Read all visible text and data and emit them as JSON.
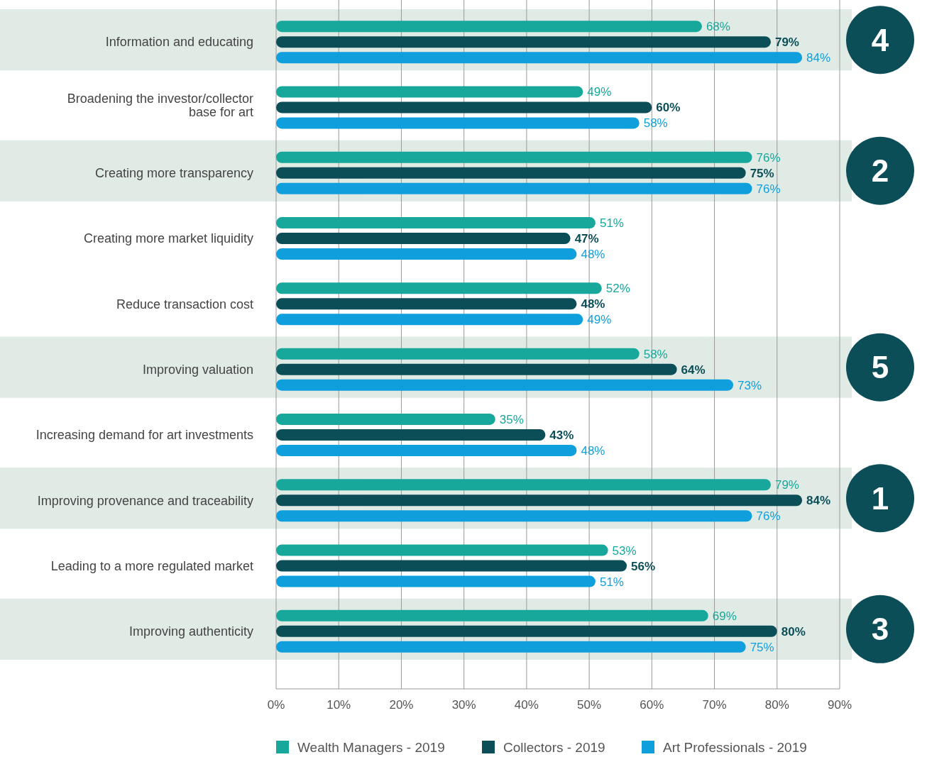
{
  "chart_data": {
    "type": "bar",
    "orientation": "horizontal",
    "categories": [
      "Information and educating",
      "Broadening the investor/collector base for art",
      "Creating more transparency",
      "Creating more market liquidity",
      "Reduce transaction cost",
      "Improving valuation",
      "Increasing demand for art investments",
      "Improving provenance and traceability",
      "Leading to a more regulated market",
      "Improving authenticity"
    ],
    "series": [
      {
        "name": "Wealth Managers - 2019",
        "color": "#17a79b",
        "values": [
          68,
          49,
          76,
          51,
          52,
          58,
          35,
          79,
          53,
          69
        ],
        "value_labels": [
          "68%",
          "49%",
          "76%",
          "51%",
          "52%",
          "58%",
          "35%",
          "79%",
          "53%",
          "69%"
        ]
      },
      {
        "name": "Collectors - 2019",
        "color": "#0b4e58",
        "values": [
          79,
          60,
          75,
          47,
          48,
          64,
          43,
          84,
          56,
          80
        ],
        "value_labels": [
          "79%",
          "60%",
          "75%",
          "47%",
          "48%",
          "64%",
          "43%",
          "84%",
          "56%",
          "80%"
        ]
      },
      {
        "name": "Art Professionals - 2019",
        "color": "#109fdd",
        "values": [
          84,
          58,
          76,
          48,
          49,
          73,
          48,
          76,
          51,
          75
        ],
        "value_labels": [
          "84%",
          "58%",
          "76%",
          "48%",
          "49%",
          "73%",
          "48%",
          "76%",
          "51%",
          "75%"
        ]
      }
    ],
    "xlim": [
      0,
      90
    ],
    "xticks": [
      {
        "value": 0,
        "label": "0%"
      },
      {
        "value": 10,
        "label": "10%"
      },
      {
        "value": 20,
        "label": "20%"
      },
      {
        "value": 30,
        "label": "30%"
      },
      {
        "value": 40,
        "label": "40%"
      },
      {
        "value": 50,
        "label": "50%"
      },
      {
        "value": 60,
        "label": "60%"
      },
      {
        "value": 70,
        "label": "70%"
      },
      {
        "value": 80,
        "label": "80%"
      },
      {
        "value": 90,
        "label": "90%"
      }
    ],
    "grid": "x",
    "legend": "bottom",
    "bands": [
      {
        "axis": "y",
        "from": "Information and educating",
        "to": "Information and educating",
        "label": "4",
        "color": "#e1ebe6"
      },
      {
        "axis": "y",
        "from": "Creating more transparency",
        "to": "Creating more transparency",
        "label": "2",
        "color": "#e1ebe6"
      },
      {
        "axis": "y",
        "from": "Improving valuation",
        "to": "Improving valuation",
        "label": "5",
        "color": "#e1ebe6"
      },
      {
        "axis": "y",
        "from": "Improving provenance and traceability",
        "to": "Improving provenance and traceability",
        "label": "1",
        "color": "#e1ebe6"
      },
      {
        "axis": "y",
        "from": "Improving authenticity",
        "to": "Improving authenticity",
        "label": "3",
        "color": "#e1ebe6"
      }
    ]
  }
}
